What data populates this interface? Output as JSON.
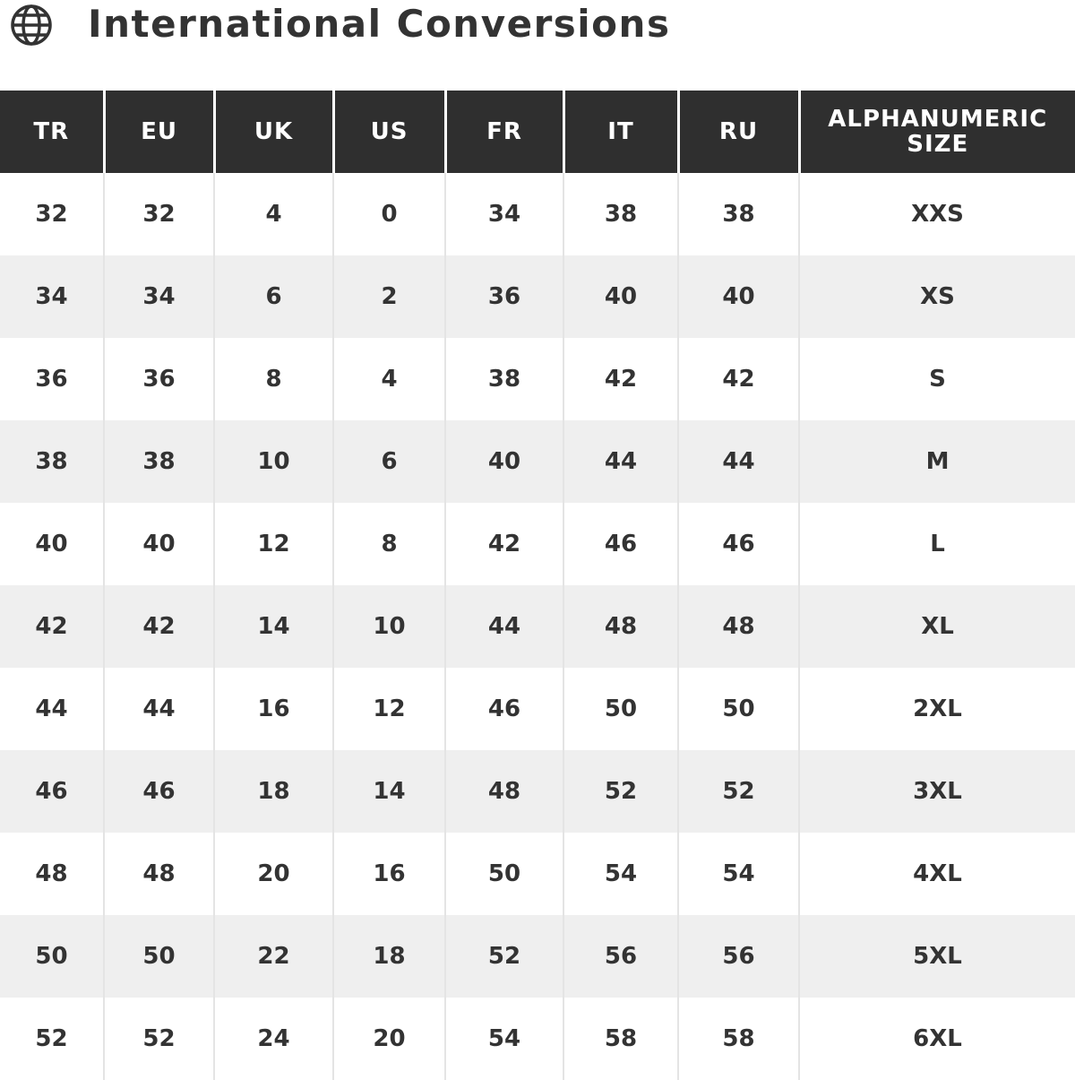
{
  "title": "International Conversions",
  "icon": "globe-icon",
  "colors": {
    "header_bg": "#2f2f2f",
    "alt_row": "#efefef",
    "text": "#333333"
  },
  "table": {
    "headers": [
      "TR",
      "EU",
      "UK",
      "US",
      "FR",
      "IT",
      "RU",
      "ALPHANUMERIC SIZE"
    ],
    "rows": [
      [
        "32",
        "32",
        "4",
        "0",
        "34",
        "38",
        "38",
        "XXS"
      ],
      [
        "34",
        "34",
        "6",
        "2",
        "36",
        "40",
        "40",
        "XS"
      ],
      [
        "36",
        "36",
        "8",
        "4",
        "38",
        "42",
        "42",
        "S"
      ],
      [
        "38",
        "38",
        "10",
        "6",
        "40",
        "44",
        "44",
        "M"
      ],
      [
        "40",
        "40",
        "12",
        "8",
        "42",
        "46",
        "46",
        "L"
      ],
      [
        "42",
        "42",
        "14",
        "10",
        "44",
        "48",
        "48",
        "XL"
      ],
      [
        "44",
        "44",
        "16",
        "12",
        "46",
        "50",
        "50",
        "2XL"
      ],
      [
        "46",
        "46",
        "18",
        "14",
        "48",
        "52",
        "52",
        "3XL"
      ],
      [
        "48",
        "48",
        "20",
        "16",
        "50",
        "54",
        "54",
        "4XL"
      ],
      [
        "50",
        "50",
        "22",
        "18",
        "52",
        "56",
        "56",
        "5XL"
      ],
      [
        "52",
        "52",
        "24",
        "20",
        "54",
        "58",
        "58",
        "6XL"
      ]
    ]
  }
}
